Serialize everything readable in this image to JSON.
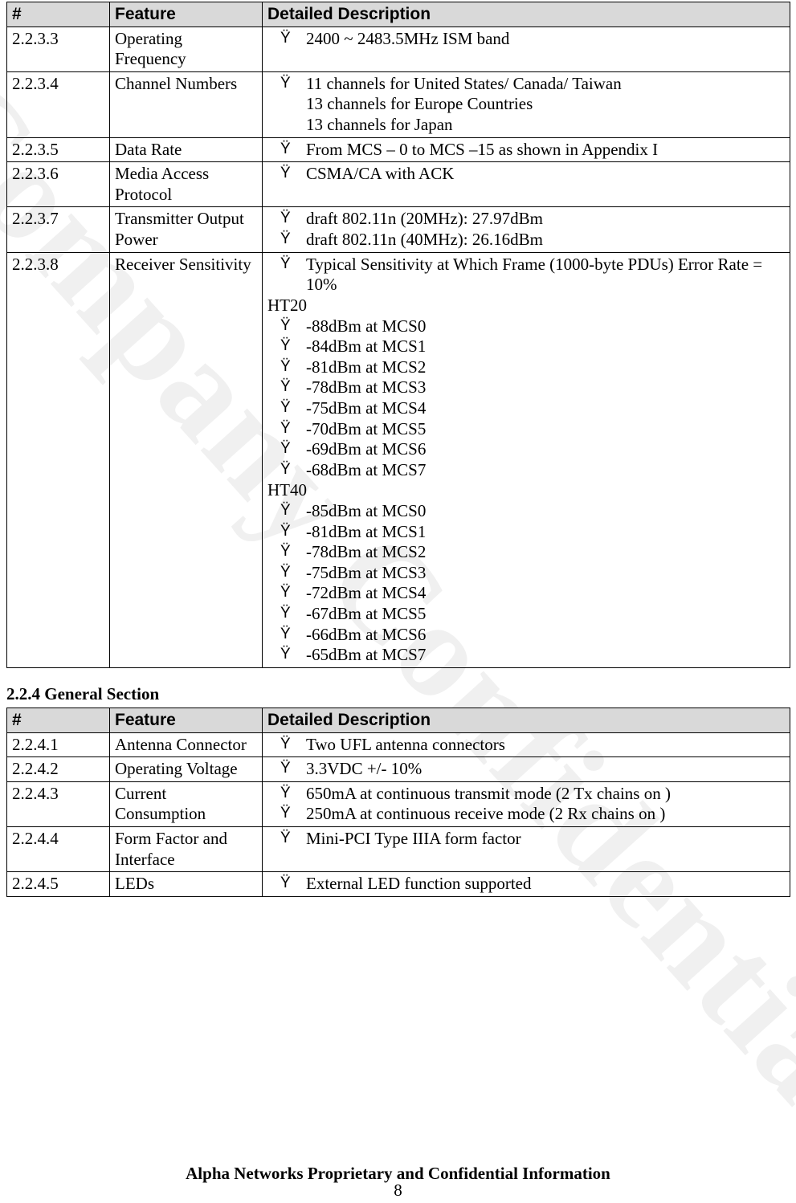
{
  "watermark_text": "Company Confidential",
  "footer_text": "Alpha Networks Proprietary and Confidential Information",
  "page_number": "8",
  "bullet_char": "Ÿ",
  "colors": {
    "header_bg": "#d9d9d9",
    "border": "#000000",
    "text": "#000000",
    "page_bg": "#ffffff"
  },
  "tables": [
    {
      "headers": {
        "num": "#",
        "feature": "Feature",
        "desc": "Detailed Description"
      },
      "rows": [
        {
          "num": "2.2.3.3",
          "feature": "Operating Frequency",
          "lines": [
            {
              "type": "bullet",
              "text": "2400 ~ 2483.5MHz ISM band"
            }
          ]
        },
        {
          "num": "2.2.3.4",
          "feature": "Channel Numbers",
          "lines": [
            {
              "type": "bullet",
              "text": "11 channels for United States/ Canada/ Taiwan"
            },
            {
              "type": "plain",
              "text": "13 channels for Europe Countries"
            },
            {
              "type": "plain",
              "text": "13 channels for Japan"
            }
          ]
        },
        {
          "num": "2.2.3.5",
          "feature": "Data Rate",
          "lines": [
            {
              "type": "bullet",
              "text": "From MCS – 0 to MCS –15 as shown in Appendix I"
            }
          ]
        },
        {
          "num": "2.2.3.6",
          "feature": "Media Access Protocol",
          "lines": [
            {
              "type": "bullet",
              "text": "CSMA/CA with ACK"
            }
          ]
        },
        {
          "num": "2.2.3.7",
          "feature": "Transmitter Output Power",
          "lines": [
            {
              "type": "bullet",
              "text": "draft 802.11n (20MHz): 27.97dBm"
            },
            {
              "type": "bullet",
              "text": "draft 802.11n (40MHz): 26.16dBm"
            }
          ]
        },
        {
          "num": "2.2.3.8",
          "feature": "Receiver Sensitivity",
          "lines": [
            {
              "type": "bullet",
              "text": "Typical Sensitivity at Which Frame (1000-byte PDUs) Error Rate = 10%"
            },
            {
              "type": "label",
              "text": "HT20"
            },
            {
              "type": "bullet",
              "text": "-88dBm at MCS0"
            },
            {
              "type": "bullet",
              "text": "-84dBm at MCS1"
            },
            {
              "type": "bullet",
              "text": "-81dBm at MCS2"
            },
            {
              "type": "bullet",
              "text": "-78dBm at MCS3"
            },
            {
              "type": "bullet",
              "text": "-75dBm at MCS4"
            },
            {
              "type": "bullet",
              "text": "-70dBm at MCS5"
            },
            {
              "type": "bullet",
              "text": "-69dBm at MCS6"
            },
            {
              "type": "bullet",
              "text": "-68dBm at MCS7"
            },
            {
              "type": "label",
              "text": "HT40"
            },
            {
              "type": "bullet",
              "text": "-85dBm at MCS0"
            },
            {
              "type": "bullet",
              "text": "-81dBm at MCS1"
            },
            {
              "type": "bullet",
              "text": "-78dBm at MCS2"
            },
            {
              "type": "bullet",
              "text": "-75dBm at MCS3"
            },
            {
              "type": "bullet",
              "text": "-72dBm at MCS4"
            },
            {
              "type": "bullet",
              "text": "-67dBm at MCS5"
            },
            {
              "type": "bullet",
              "text": "-66dBm at MCS6"
            },
            {
              "type": "bullet",
              "text": "-65dBm at MCS7"
            }
          ]
        }
      ]
    },
    {
      "section_heading": "2.2.4 General Section",
      "headers": {
        "num": "#",
        "feature": "Feature",
        "desc": "Detailed Description"
      },
      "rows": [
        {
          "num": "2.2.4.1",
          "feature": "Antenna Connector",
          "lines": [
            {
              "type": "bullet",
              "text": "Two UFL antenna connectors"
            }
          ]
        },
        {
          "num": "2.2.4.2",
          "feature": "Operating Voltage",
          "lines": [
            {
              "type": "bullet",
              "text": "3.3VDC +/- 10%"
            }
          ]
        },
        {
          "num": "2.2.4.3",
          "feature": "Current Consumption",
          "lines": [
            {
              "type": "bullet",
              "text": "650mA at continuous transmit mode (2 Tx chains on )"
            },
            {
              "type": "bullet",
              "text": "250mA at continuous receive mode (2 Rx chains on )"
            }
          ]
        },
        {
          "num": "2.2.4.4",
          "feature": "Form Factor and Interface",
          "lines": [
            {
              "type": "bullet",
              "text": "Mini-PCI Type IIIA form factor"
            }
          ]
        },
        {
          "num": "2.2.4.5",
          "feature": "LEDs",
          "lines": [
            {
              "type": "bullet",
              "text": "External LED function supported"
            }
          ]
        }
      ]
    }
  ]
}
